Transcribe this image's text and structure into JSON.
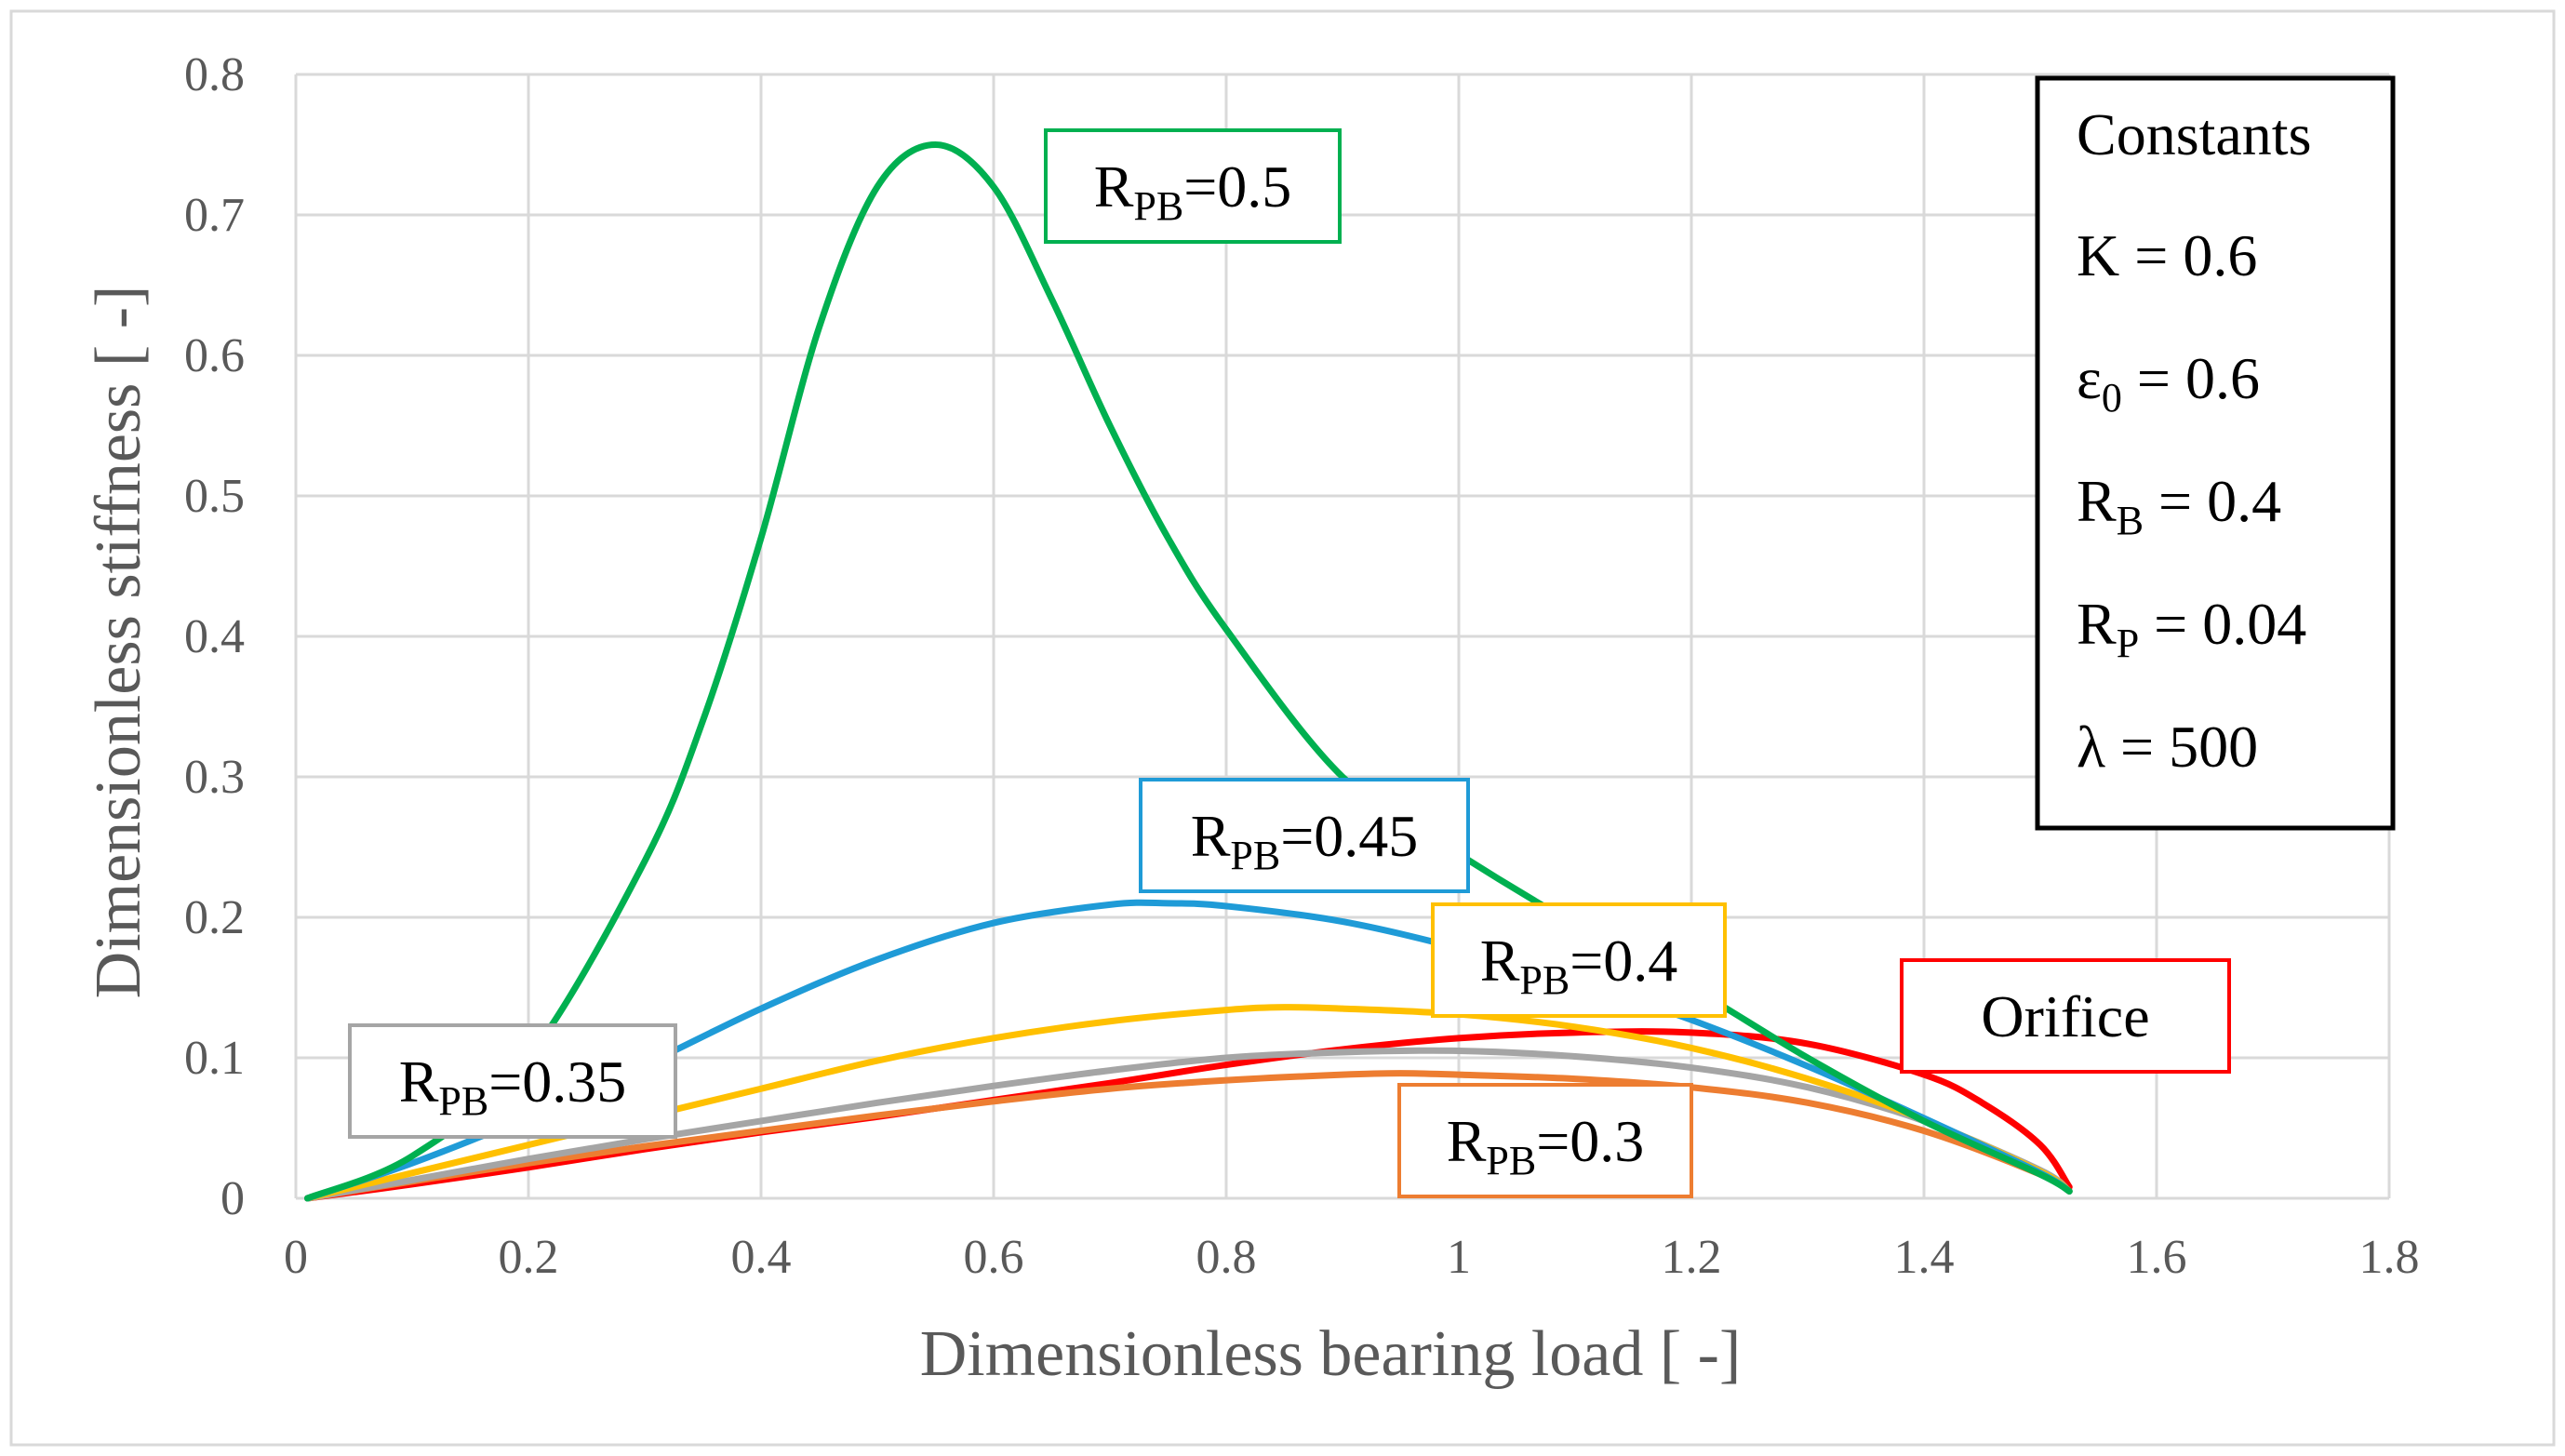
{
  "chart_data": {
    "type": "line",
    "title": "",
    "xlabel": "Dimensionless bearing load [ -]",
    "ylabel": "Dimensionless stiffness [ -]",
    "xlim": [
      0,
      1.8
    ],
    "ylim": [
      0,
      0.8
    ],
    "xticks": [
      "0",
      "0.2",
      "0.4",
      "0.6",
      "0.8",
      "1",
      "1.2",
      "1.4",
      "1.6",
      "1.8"
    ],
    "yticks": [
      "0",
      "0.1",
      "0.2",
      "0.3",
      "0.4",
      "0.5",
      "0.6",
      "0.7",
      "0.8"
    ],
    "grid": true,
    "series": [
      {
        "name": "R_PB=0.3",
        "label_main": "R",
        "label_sub": "PB",
        "label_rest": "=0.3",
        "color": "#ED7D31",
        "x": [
          0.01,
          0.1,
          0.2,
          0.3,
          0.4,
          0.5,
          0.6,
          0.7,
          0.8,
          0.9,
          0.95,
          1.0,
          1.1,
          1.2,
          1.3,
          1.4,
          1.5,
          1.525
        ],
        "y": [
          0.0,
          0.012,
          0.025,
          0.037,
          0.048,
          0.059,
          0.069,
          0.078,
          0.084,
          0.088,
          0.089,
          0.088,
          0.085,
          0.079,
          0.068,
          0.048,
          0.017,
          0.005
        ]
      },
      {
        "name": "R_PB=0.35",
        "label_main": "R",
        "label_sub": "PB",
        "label_rest": "=0.35",
        "color": "#A5A5A5",
        "x": [
          0.01,
          0.1,
          0.2,
          0.3,
          0.4,
          0.5,
          0.6,
          0.7,
          0.8,
          0.9,
          1.0,
          1.1,
          1.2,
          1.3,
          1.4,
          1.5,
          1.525
        ],
        "y": [
          0.0,
          0.013,
          0.028,
          0.042,
          0.055,
          0.068,
          0.08,
          0.091,
          0.1,
          0.104,
          0.105,
          0.101,
          0.093,
          0.079,
          0.055,
          0.02,
          0.005
        ]
      },
      {
        "name": "R_PB=0.4",
        "label_main": "R",
        "label_sub": "PB",
        "label_rest": "=0.4",
        "color": "#FFC000",
        "x": [
          0.01,
          0.1,
          0.2,
          0.3,
          0.4,
          0.5,
          0.6,
          0.7,
          0.8,
          0.85,
          0.9,
          1.0,
          1.1,
          1.2,
          1.3,
          1.4,
          1.5,
          1.525
        ],
        "y": [
          0.0,
          0.018,
          0.038,
          0.058,
          0.078,
          0.098,
          0.114,
          0.126,
          0.134,
          0.136,
          0.135,
          0.131,
          0.122,
          0.107,
          0.085,
          0.056,
          0.019,
          0.005
        ]
      },
      {
        "name": "R_PB=0.45",
        "label_main": "R",
        "label_sub": "PB",
        "label_rest": "=0.45",
        "color": "#1F9BD7",
        "x": [
          0.01,
          0.1,
          0.2,
          0.3,
          0.4,
          0.5,
          0.6,
          0.7,
          0.75,
          0.8,
          0.9,
          1.0,
          1.1,
          1.2,
          1.3,
          1.4,
          1.5,
          1.525
        ],
        "y": [
          0.0,
          0.025,
          0.058,
          0.095,
          0.135,
          0.17,
          0.196,
          0.209,
          0.21,
          0.208,
          0.197,
          0.178,
          0.155,
          0.127,
          0.094,
          0.057,
          0.018,
          0.005
        ]
      },
      {
        "name": "R_PB=0.5",
        "label_main": "R",
        "label_sub": "PB",
        "label_rest": "=0.5",
        "color": "#00B050",
        "x": [
          0.01,
          0.1,
          0.2,
          0.3,
          0.35,
          0.4,
          0.45,
          0.5,
          0.55,
          0.6,
          0.65,
          0.7,
          0.75,
          0.8,
          0.9,
          1.0,
          1.1,
          1.2,
          1.3,
          1.4,
          1.5,
          1.525
        ],
        "y": [
          0.0,
          0.03,
          0.1,
          0.24,
          0.34,
          0.47,
          0.62,
          0.72,
          0.75,
          0.72,
          0.64,
          0.55,
          0.47,
          0.405,
          0.3,
          0.245,
          0.195,
          0.15,
          0.1,
          0.055,
          0.017,
          0.005
        ]
      },
      {
        "name": "Orifice",
        "label_main": "Orifice",
        "label_sub": "",
        "label_rest": "",
        "color": "#FF0000",
        "x": [
          0.01,
          0.1,
          0.2,
          0.3,
          0.4,
          0.5,
          0.6,
          0.7,
          0.8,
          0.9,
          1.0,
          1.1,
          1.2,
          1.3,
          1.4,
          1.45,
          1.5,
          1.525
        ],
        "y": [
          0.0,
          0.01,
          0.022,
          0.035,
          0.047,
          0.058,
          0.07,
          0.082,
          0.095,
          0.106,
          0.114,
          0.118,
          0.118,
          0.11,
          0.088,
          0.068,
          0.038,
          0.008
        ]
      }
    ],
    "constants_box": {
      "title": "Constants",
      "lines": [
        {
          "main": "K",
          "sub": "",
          "rest": " = 0.6"
        },
        {
          "main": "ε",
          "sub": "0",
          "rest": " = 0.6"
        },
        {
          "main": "R",
          "sub": "B",
          "rest": " = 0.4"
        },
        {
          "main": "R",
          "sub": "P",
          "rest": " = 0.04"
        },
        {
          "main": "λ",
          "sub": "",
          "rest": " = 500"
        }
      ]
    }
  }
}
